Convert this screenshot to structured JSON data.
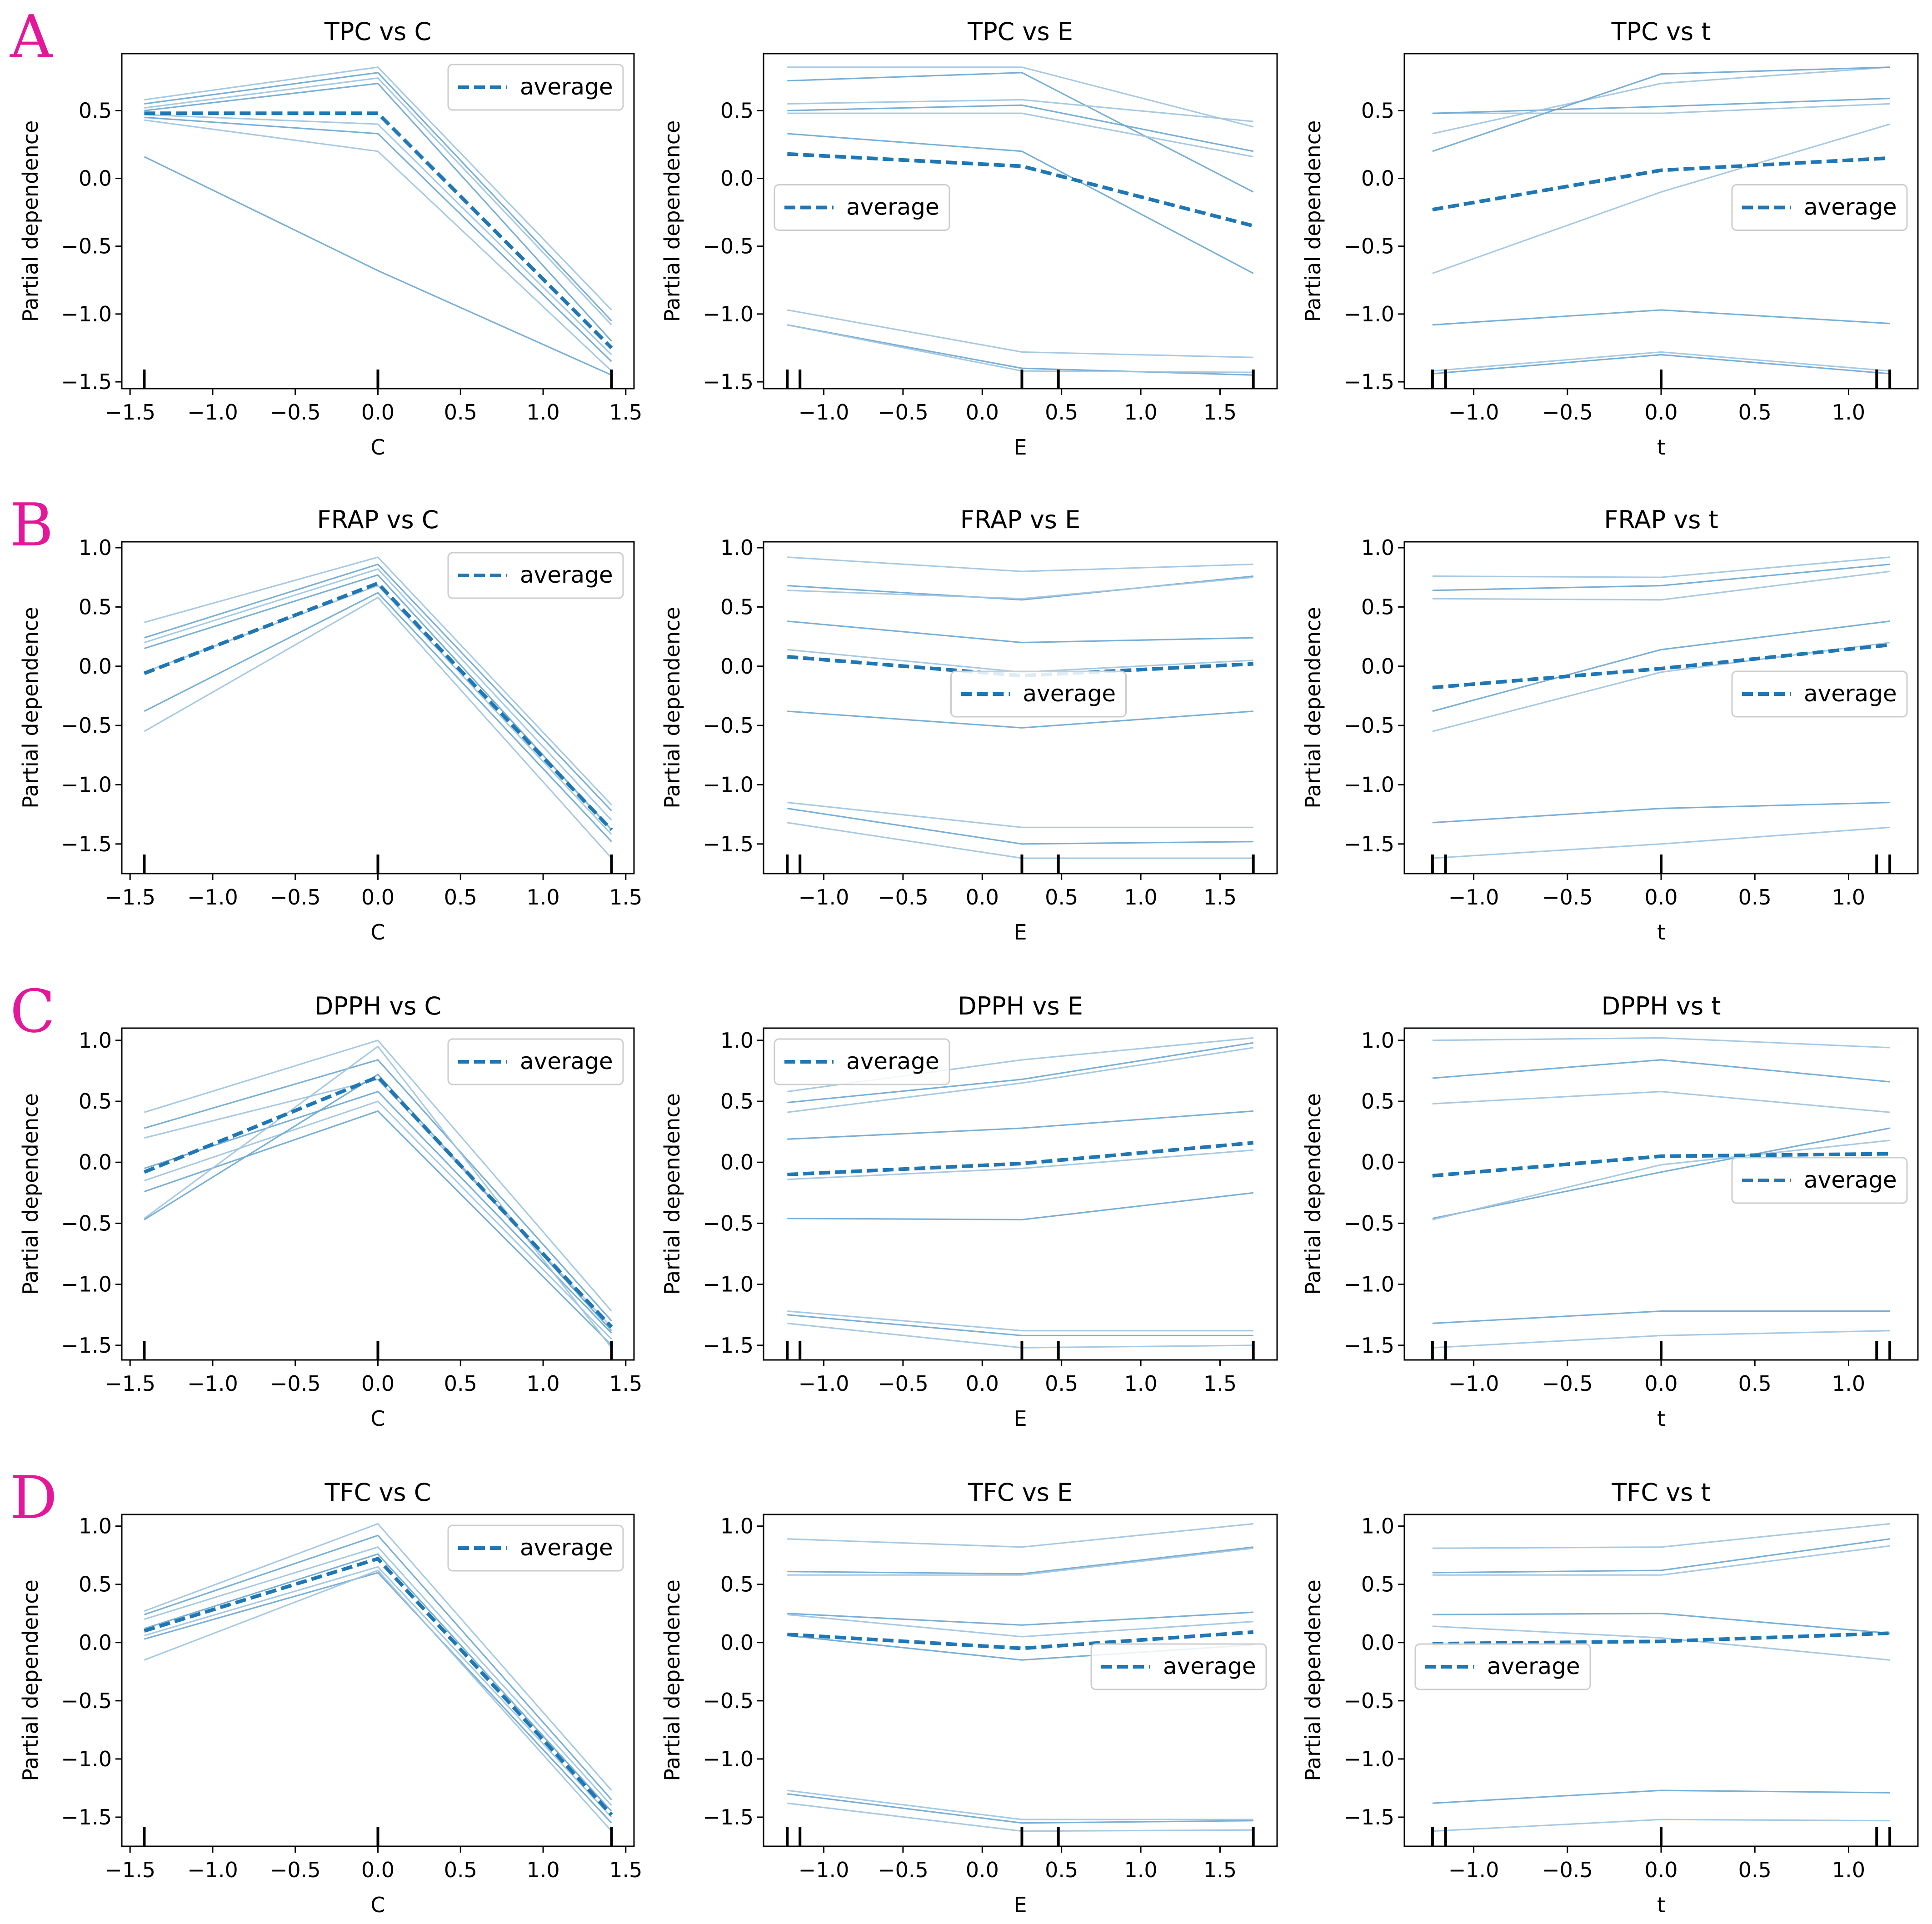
{
  "figure": {
    "row_labels": [
      "A",
      "B",
      "C",
      "D"
    ],
    "ylabel": "Partial dependence",
    "legend_label": "average",
    "colors": {
      "ice": "#9dc3e0",
      "ice_dark": "#6aa6d0",
      "average": "#1f77b4",
      "letter": "#e4179a",
      "axis": "#000000"
    }
  },
  "chart_data": [
    {
      "type": "line",
      "row": 0,
      "col": 0,
      "title": "TPC vs C",
      "xlabel": "C",
      "ylabel": "Partial dependence",
      "x": [
        -1.414,
        0,
        1.414
      ],
      "xlim": [
        -1.55,
        1.55
      ],
      "ylim": [
        -1.55,
        0.92
      ],
      "xticks": [
        -1.5,
        -1.0,
        -0.5,
        0.0,
        0.5,
        1.0,
        1.5
      ],
      "xtick_labels": [
        "−1.5",
        "−1.0",
        "−0.5",
        "0.0",
        "0.5",
        "1.0",
        "1.5"
      ],
      "yticks": [
        -1.5,
        -1.0,
        -0.5,
        0.0,
        0.5
      ],
      "ytick_labels": [
        "−1.5",
        "−1.0",
        "−0.5",
        "0.0",
        "0.5"
      ],
      "rug": [
        -1.414,
        0,
        1.414
      ],
      "legend": "top-right",
      "ice": [
        [
          0.58,
          0.82,
          -0.97
        ],
        [
          0.55,
          0.78,
          -1.05
        ],
        [
          0.52,
          0.74,
          -1.08
        ],
        [
          0.5,
          0.7,
          -1.2
        ],
        [
          0.47,
          0.4,
          -1.3
        ],
        [
          0.45,
          0.33,
          -1.35
        ],
        [
          0.43,
          0.2,
          -1.42
        ],
        [
          0.16,
          -0.68,
          -1.45
        ]
      ],
      "average": [
        0.48,
        0.48,
        -1.25
      ]
    },
    {
      "type": "line",
      "row": 0,
      "col": 1,
      "title": "TPC vs E",
      "xlabel": "E",
      "ylabel": "Partial dependence",
      "x": [
        -1.23,
        0.25,
        1.71
      ],
      "xlim": [
        -1.38,
        1.86
      ],
      "ylim": [
        -1.55,
        0.92
      ],
      "xticks": [
        -1.0,
        -0.5,
        0.0,
        0.5,
        1.0,
        1.5
      ],
      "xtick_labels": [
        "−1.0",
        "−0.5",
        "0.0",
        "0.5",
        "1.0",
        "1.5"
      ],
      "yticks": [
        -1.5,
        -1.0,
        -0.5,
        0.0,
        0.5
      ],
      "ytick_labels": [
        "−1.5",
        "−1.0",
        "−0.5",
        "0.0",
        "0.5"
      ],
      "rug": [
        -1.23,
        -1.15,
        0.25,
        0.48,
        1.71
      ],
      "legend": "center-left",
      "ice": [
        [
          0.82,
          0.82,
          0.38
        ],
        [
          0.72,
          0.78,
          -0.1
        ],
        [
          0.55,
          0.58,
          0.42
        ],
        [
          0.5,
          0.54,
          0.2
        ],
        [
          0.48,
          0.48,
          0.16
        ],
        [
          0.33,
          0.2,
          -0.7
        ],
        [
          -0.97,
          -1.28,
          -1.32
        ],
        [
          -1.08,
          -1.4,
          -1.45
        ],
        [
          -1.08,
          -1.42,
          -1.43
        ]
      ],
      "average": [
        0.18,
        0.09,
        -0.35
      ]
    },
    {
      "type": "line",
      "row": 0,
      "col": 2,
      "title": "TPC vs t",
      "xlabel": "t",
      "ylabel": "Partial dependence",
      "x": [
        -1.22,
        0,
        1.22
      ],
      "xlim": [
        -1.37,
        1.37
      ],
      "ylim": [
        -1.55,
        0.92
      ],
      "xticks": [
        -1.0,
        -0.5,
        0.0,
        0.5,
        1.0
      ],
      "xtick_labels": [
        "−1.0",
        "−0.5",
        "0.0",
        "0.5",
        "1.0"
      ],
      "yticks": [
        -1.5,
        -1.0,
        -0.5,
        0.0,
        0.5
      ],
      "ytick_labels": [
        "−1.5",
        "−1.0",
        "−0.5",
        "0.0",
        "0.5"
      ],
      "rug": [
        -1.22,
        -1.15,
        0,
        1.15,
        1.22
      ],
      "legend": "center-right",
      "ice": [
        [
          0.48,
          0.48,
          0.55
        ],
        [
          0.48,
          0.53,
          0.59
        ],
        [
          0.33,
          0.7,
          0.82
        ],
        [
          0.2,
          0.77,
          0.82
        ],
        [
          -0.7,
          -0.1,
          0.4
        ],
        [
          -1.08,
          -0.97,
          -1.07
        ],
        [
          -1.42,
          -1.28,
          -1.42
        ],
        [
          -1.44,
          -1.3,
          -1.44
        ]
      ],
      "average": [
        -0.23,
        0.06,
        0.15
      ]
    },
    {
      "type": "line",
      "row": 1,
      "col": 0,
      "title": "FRAP vs C",
      "xlabel": "C",
      "ylabel": "Partial dependence",
      "x": [
        -1.414,
        0,
        1.414
      ],
      "xlim": [
        -1.55,
        1.55
      ],
      "ylim": [
        -1.75,
        1.05
      ],
      "xticks": [
        -1.5,
        -1.0,
        -0.5,
        0.0,
        0.5,
        1.0,
        1.5
      ],
      "xtick_labels": [
        "−1.5",
        "−1.0",
        "−0.5",
        "0.0",
        "0.5",
        "1.0",
        "1.5"
      ],
      "yticks": [
        -1.5,
        -1.0,
        -0.5,
        0.0,
        0.5,
        1.0
      ],
      "ytick_labels": [
        "−1.5",
        "−1.0",
        "−0.5",
        "0.0",
        "0.5",
        "1.0"
      ],
      "rug": [
        -1.414,
        0,
        1.414
      ],
      "legend": "top-right",
      "ice": [
        [
          0.37,
          0.92,
          -1.17
        ],
        [
          0.24,
          0.86,
          -1.22
        ],
        [
          0.2,
          0.82,
          -1.3
        ],
        [
          0.15,
          0.77,
          -1.38
        ],
        [
          -0.05,
          0.68,
          -1.42
        ],
        [
          -0.38,
          0.62,
          -1.48
        ],
        [
          -0.55,
          0.58,
          -1.62
        ]
      ],
      "average": [
        -0.06,
        0.7,
        -1.38
      ]
    },
    {
      "type": "line",
      "row": 1,
      "col": 1,
      "title": "FRAP vs E",
      "xlabel": "E",
      "ylabel": "Partial dependence",
      "x": [
        -1.23,
        0.25,
        1.71
      ],
      "xlim": [
        -1.38,
        1.86
      ],
      "ylim": [
        -1.75,
        1.05
      ],
      "xticks": [
        -1.0,
        -0.5,
        0.0,
        0.5,
        1.0,
        1.5
      ],
      "xtick_labels": [
        "−1.0",
        "−0.5",
        "0.0",
        "0.5",
        "1.0",
        "1.5"
      ],
      "yticks": [
        -1.5,
        -1.0,
        -0.5,
        0.0,
        0.5,
        1.0
      ],
      "ytick_labels": [
        "−1.5",
        "−1.0",
        "−0.5",
        "0.0",
        "0.5",
        "1.0"
      ],
      "rug": [
        -1.23,
        -1.15,
        0.25,
        0.48,
        1.71
      ],
      "legend": "center",
      "ice": [
        [
          0.92,
          0.8,
          0.86
        ],
        [
          0.68,
          0.56,
          0.76
        ],
        [
          0.64,
          0.57,
          0.75
        ],
        [
          0.38,
          0.2,
          0.24
        ],
        [
          0.14,
          -0.05,
          0.05
        ],
        [
          -0.38,
          -0.52,
          -0.38
        ],
        [
          -1.15,
          -1.36,
          -1.36
        ],
        [
          -1.2,
          -1.5,
          -1.48
        ],
        [
          -1.32,
          -1.62,
          -1.62
        ]
      ],
      "average": [
        0.08,
        -0.08,
        0.02
      ]
    },
    {
      "type": "line",
      "row": 1,
      "col": 2,
      "title": "FRAP vs t",
      "xlabel": "t",
      "ylabel": "Partial dependence",
      "x": [
        -1.22,
        0,
        1.22
      ],
      "xlim": [
        -1.37,
        1.37
      ],
      "ylim": [
        -1.75,
        1.05
      ],
      "xticks": [
        -1.0,
        -0.5,
        0.0,
        0.5,
        1.0
      ],
      "xtick_labels": [
        "−1.0",
        "−0.5",
        "0.0",
        "0.5",
        "1.0"
      ],
      "yticks": [
        -1.5,
        -1.0,
        -0.5,
        0.0,
        0.5,
        1.0
      ],
      "ytick_labels": [
        "−1.5",
        "−1.0",
        "−0.5",
        "0.0",
        "0.5",
        "1.0"
      ],
      "rug": [
        -1.22,
        -1.15,
        0,
        1.15,
        1.22
      ],
      "legend": "center-right",
      "ice": [
        [
          0.76,
          0.75,
          0.92
        ],
        [
          0.64,
          0.68,
          0.86
        ],
        [
          0.57,
          0.56,
          0.8
        ],
        [
          -0.38,
          0.14,
          0.38
        ],
        [
          -0.55,
          -0.05,
          0.2
        ],
        [
          -1.32,
          -1.2,
          -1.15
        ],
        [
          -1.62,
          -1.5,
          -1.36
        ]
      ],
      "average": [
        -0.18,
        -0.02,
        0.18
      ]
    },
    {
      "type": "line",
      "row": 2,
      "col": 0,
      "title": "DPPH vs C",
      "xlabel": "C",
      "ylabel": "Partial dependence",
      "x": [
        -1.414,
        0,
        1.414
      ],
      "xlim": [
        -1.55,
        1.55
      ],
      "ylim": [
        -1.62,
        1.1
      ],
      "xticks": [
        -1.5,
        -1.0,
        -0.5,
        0.0,
        0.5,
        1.0,
        1.5
      ],
      "xtick_labels": [
        "−1.5",
        "−1.0",
        "−0.5",
        "0.0",
        "0.5",
        "1.0",
        "1.5"
      ],
      "yticks": [
        -1.5,
        -1.0,
        -0.5,
        0.0,
        0.5,
        1.0
      ],
      "ytick_labels": [
        "−1.5",
        "−1.0",
        "−0.5",
        "0.0",
        "0.5",
        "1.0"
      ],
      "rug": [
        -1.414,
        0,
        1.414
      ],
      "legend": "top-right",
      "ice": [
        [
          0.41,
          1.0,
          -1.22
        ],
        [
          0.28,
          0.84,
          -1.3
        ],
        [
          0.2,
          0.68,
          -1.35
        ],
        [
          -0.05,
          0.58,
          -1.4
        ],
        [
          -0.15,
          0.5,
          -1.45
        ],
        [
          -0.24,
          0.42,
          -1.5
        ],
        [
          -0.46,
          0.95,
          -1.52
        ],
        [
          -0.47,
          0.72,
          -1.38
        ]
      ],
      "average": [
        -0.08,
        0.7,
        -1.35
      ]
    },
    {
      "type": "line",
      "row": 2,
      "col": 1,
      "title": "DPPH vs E",
      "xlabel": "E",
      "ylabel": "Partial dependence",
      "x": [
        -1.23,
        0.25,
        1.71
      ],
      "xlim": [
        -1.38,
        1.86
      ],
      "ylim": [
        -1.62,
        1.1
      ],
      "xticks": [
        -1.0,
        -0.5,
        0.0,
        0.5,
        1.0,
        1.5
      ],
      "xtick_labels": [
        "−1.0",
        "−0.5",
        "0.0",
        "0.5",
        "1.0",
        "1.5"
      ],
      "yticks": [
        -1.5,
        -1.0,
        -0.5,
        0.0,
        0.5,
        1.0
      ],
      "ytick_labels": [
        "−1.5",
        "−1.0",
        "−0.5",
        "0.0",
        "0.5",
        "1.0"
      ],
      "rug": [
        -1.23,
        -1.15,
        0.25,
        0.48,
        1.71
      ],
      "legend": "top-left",
      "ice": [
        [
          0.58,
          0.84,
          1.02
        ],
        [
          0.49,
          0.68,
          0.98
        ],
        [
          0.41,
          0.65,
          0.94
        ],
        [
          0.19,
          0.28,
          0.42
        ],
        [
          -0.14,
          -0.05,
          0.1
        ],
        [
          -0.46,
          -0.47,
          -0.25
        ],
        [
          -1.22,
          -1.38,
          -1.38
        ],
        [
          -1.25,
          -1.42,
          -1.42
        ],
        [
          -1.32,
          -1.52,
          -1.5
        ]
      ],
      "average": [
        -0.1,
        -0.01,
        0.16
      ]
    },
    {
      "type": "line",
      "row": 2,
      "col": 2,
      "title": "DPPH vs t",
      "xlabel": "t",
      "ylabel": "Partial dependence",
      "x": [
        -1.22,
        0,
        1.22
      ],
      "xlim": [
        -1.37,
        1.37
      ],
      "ylim": [
        -1.62,
        1.1
      ],
      "xticks": [
        -1.0,
        -0.5,
        0.0,
        0.5,
        1.0
      ],
      "xtick_labels": [
        "−1.0",
        "−0.5",
        "0.0",
        "0.5",
        "1.0"
      ],
      "yticks": [
        -1.5,
        -1.0,
        -0.5,
        0.0,
        0.5,
        1.0
      ],
      "ytick_labels": [
        "−1.5",
        "−1.0",
        "−0.5",
        "0.0",
        "0.5",
        "1.0"
      ],
      "rug": [
        -1.22,
        -1.15,
        0,
        1.15,
        1.22
      ],
      "legend": "center-right",
      "ice": [
        [
          1.0,
          1.02,
          0.94
        ],
        [
          0.69,
          0.84,
          0.66
        ],
        [
          0.48,
          0.58,
          0.41
        ],
        [
          -0.46,
          -0.08,
          0.28
        ],
        [
          -0.47,
          -0.02,
          0.18
        ],
        [
          -1.32,
          -1.22,
          -1.22
        ],
        [
          -1.52,
          -1.42,
          -1.38
        ]
      ],
      "average": [
        -0.11,
        0.05,
        0.07
      ]
    },
    {
      "type": "line",
      "row": 3,
      "col": 0,
      "title": "TFC vs C",
      "xlabel": "C",
      "ylabel": "Partial dependence",
      "x": [
        -1.414,
        0,
        1.414
      ],
      "xlim": [
        -1.55,
        1.55
      ],
      "ylim": [
        -1.75,
        1.1
      ],
      "xticks": [
        -1.5,
        -1.0,
        -0.5,
        0.0,
        0.5,
        1.0,
        1.5
      ],
      "xtick_labels": [
        "−1.5",
        "−1.0",
        "−0.5",
        "0.0",
        "0.5",
        "1.0",
        "1.5"
      ],
      "yticks": [
        -1.5,
        -1.0,
        -0.5,
        0.0,
        0.5,
        1.0
      ],
      "ytick_labels": [
        "−1.5",
        "−1.0",
        "−0.5",
        "0.0",
        "0.5",
        "1.0"
      ],
      "rug": [
        -1.414,
        0,
        1.414
      ],
      "legend": "top-right",
      "ice": [
        [
          0.27,
          1.02,
          -1.27
        ],
        [
          0.24,
          0.92,
          -1.35
        ],
        [
          0.2,
          0.82,
          -1.4
        ],
        [
          0.12,
          0.76,
          -1.45
        ],
        [
          0.06,
          0.65,
          -1.5
        ],
        [
          0.03,
          0.6,
          -1.55
        ],
        [
          -0.15,
          0.62,
          -1.62
        ]
      ],
      "average": [
        0.1,
        0.72,
        -1.48
      ]
    },
    {
      "type": "line",
      "row": 3,
      "col": 1,
      "title": "TFC vs E",
      "xlabel": "E",
      "ylabel": "Partial dependence",
      "x": [
        -1.23,
        0.25,
        1.71
      ],
      "xlim": [
        -1.38,
        1.86
      ],
      "ylim": [
        -1.75,
        1.1
      ],
      "xticks": [
        -1.0,
        -0.5,
        0.0,
        0.5,
        1.0,
        1.5
      ],
      "xtick_labels": [
        "−1.0",
        "−0.5",
        "0.0",
        "0.5",
        "1.0",
        "1.5"
      ],
      "yticks": [
        -1.5,
        -1.0,
        -0.5,
        0.0,
        0.5,
        1.0
      ],
      "ytick_labels": [
        "−1.5",
        "−1.0",
        "−0.5",
        "0.0",
        "0.5",
        "1.0"
      ],
      "rug": [
        -1.23,
        -1.15,
        0.25,
        0.48,
        1.71
      ],
      "legend": "center-right",
      "ice": [
        [
          0.89,
          0.82,
          1.02
        ],
        [
          0.61,
          0.59,
          0.82
        ],
        [
          0.58,
          0.58,
          0.81
        ],
        [
          0.25,
          0.15,
          0.26
        ],
        [
          0.24,
          0.05,
          0.18
        ],
        [
          0.06,
          -0.15,
          -0.02
        ],
        [
          -1.27,
          -1.52,
          -1.52
        ],
        [
          -1.3,
          -1.55,
          -1.53
        ],
        [
          -1.38,
          -1.62,
          -1.61
        ]
      ],
      "average": [
        0.07,
        -0.05,
        0.09
      ]
    },
    {
      "type": "line",
      "row": 3,
      "col": 2,
      "title": "TFC vs t",
      "xlabel": "t",
      "ylabel": "Partial dependence",
      "x": [
        -1.22,
        0,
        1.22
      ],
      "xlim": [
        -1.37,
        1.37
      ],
      "ylim": [
        -1.75,
        1.1
      ],
      "xticks": [
        -1.0,
        -0.5,
        0.0,
        0.5,
        1.0
      ],
      "xtick_labels": [
        "−1.0",
        "−0.5",
        "0.0",
        "0.5",
        "1.0"
      ],
      "yticks": [
        -1.5,
        -1.0,
        -0.5,
        0.0,
        0.5,
        1.0
      ],
      "ytick_labels": [
        "−1.5",
        "−1.0",
        "−0.5",
        "0.0",
        "0.5",
        "1.0"
      ],
      "rug": [
        -1.22,
        -1.15,
        0,
        1.15,
        1.22
      ],
      "legend": "center-left",
      "ice": [
        [
          0.81,
          0.82,
          1.02
        ],
        [
          0.6,
          0.62,
          0.89
        ],
        [
          0.58,
          0.58,
          0.83
        ],
        [
          0.24,
          0.25,
          0.08
        ],
        [
          0.14,
          0.04,
          -0.15
        ],
        [
          -1.38,
          -1.27,
          -1.29
        ],
        [
          -1.62,
          -1.52,
          -1.53
        ]
      ],
      "average": [
        -0.01,
        0.01,
        0.08
      ]
    }
  ]
}
